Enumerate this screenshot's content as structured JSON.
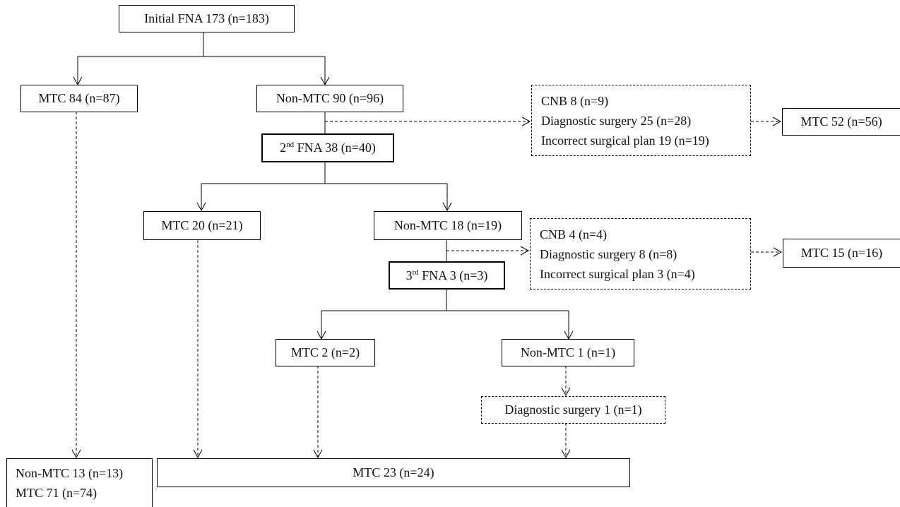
{
  "nodes": {
    "initial_fna": "Initial FNA 173 (n=183)",
    "mtc_84": "MTC 84 (n=87)",
    "non_mtc_90": "Non-MTC 90 (n=96)",
    "branch1": {
      "cnb": "CNB 8 (n=9)",
      "diag_surgery": "Diagnostic surgery 25 (n=28)",
      "incorrect_plan": "Incorrect surgical plan 19 (n=19)"
    },
    "mtc_52": "MTC 52 (n=56)",
    "fna2": {
      "ordinal": "2",
      "suffix": "nd",
      "rest": " FNA 38 (n=40)"
    },
    "mtc_20": "MTC 20 (n=21)",
    "non_mtc_18": "Non-MTC 18 (n=19)",
    "branch2": {
      "cnb": "CNB 4 (n=4)",
      "diag_surgery": "Diagnostic surgery 8 (n=8)",
      "incorrect_plan": "Incorrect surgical plan 3 (n=4)"
    },
    "mtc_15": "MTC 15 (n=16)",
    "fna3": {
      "ordinal": "3",
      "suffix": "rd",
      "rest": " FNA 3 (n=3)"
    },
    "mtc_2": "MTC 2 (n=2)",
    "non_mtc_1": "Non-MTC 1 (n=1)",
    "diag_surgery_1": "Diagnostic surgery 1 (n=1)",
    "final_left": {
      "non_mtc": "Non-MTC 13 (n=13)",
      "mtc": "MTC 71 (n=74)"
    },
    "final_mtc_23": "MTC 23 (n=24)"
  }
}
